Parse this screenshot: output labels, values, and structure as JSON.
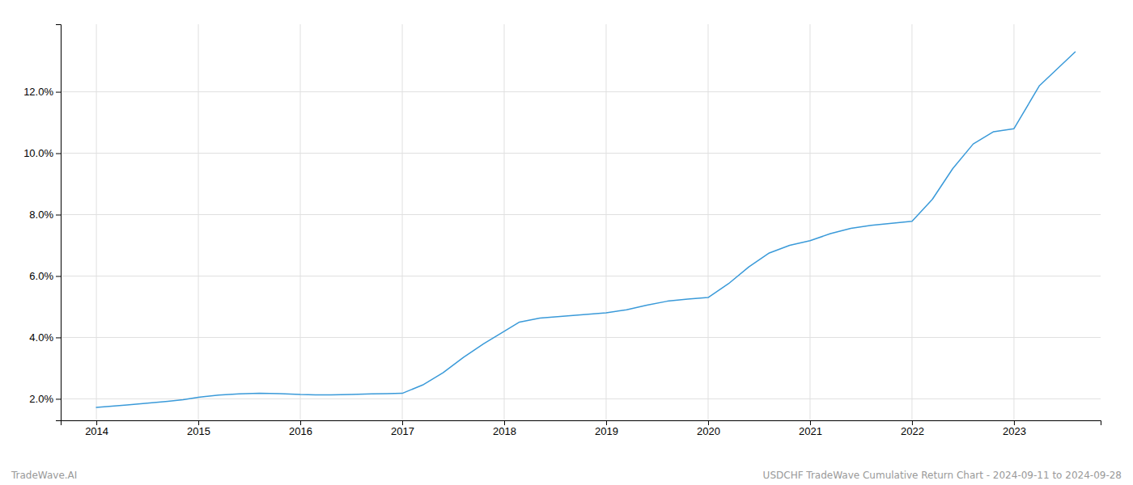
{
  "chart_data": {
    "type": "line",
    "x": [
      2014.0,
      2014.15,
      2014.3,
      2014.5,
      2014.7,
      2014.85,
      2015.0,
      2015.2,
      2015.4,
      2015.6,
      2015.8,
      2016.0,
      2016.15,
      2016.3,
      2016.5,
      2016.7,
      2016.85,
      2017.0,
      2017.2,
      2017.4,
      2017.6,
      2017.8,
      2018.0,
      2018.15,
      2018.35,
      2018.5,
      2018.7,
      2018.85,
      2019.0,
      2019.2,
      2019.4,
      2019.6,
      2019.8,
      2020.0,
      2020.2,
      2020.4,
      2020.6,
      2020.8,
      2021.0,
      2021.2,
      2021.4,
      2021.6,
      2021.8,
      2022.0,
      2022.2,
      2022.4,
      2022.6,
      2022.8,
      2023.0,
      2023.25,
      2023.6
    ],
    "values": [
      1.72,
      1.76,
      1.8,
      1.86,
      1.92,
      1.97,
      2.05,
      2.12,
      2.16,
      2.18,
      2.17,
      2.14,
      2.13,
      2.13,
      2.14,
      2.16,
      2.17,
      2.18,
      2.45,
      2.85,
      3.35,
      3.8,
      4.2,
      4.5,
      4.63,
      4.67,
      4.72,
      4.76,
      4.8,
      4.9,
      5.05,
      5.18,
      5.25,
      5.3,
      5.75,
      6.3,
      6.75,
      7.0,
      7.15,
      7.38,
      7.55,
      7.65,
      7.72,
      7.78,
      8.5,
      9.5,
      10.3,
      10.7,
      10.8,
      12.2,
      13.3
    ],
    "color": "#3a9ad9",
    "xlim": [
      2013.65,
      2023.85
    ],
    "xticks": [
      2014,
      2015,
      2016,
      2017,
      2018,
      2019,
      2020,
      2021,
      2022,
      2023
    ],
    "ylim": [
      1.3,
      14.2
    ],
    "yticks": [
      {
        "value": 2.0,
        "label": "2.0%"
      },
      {
        "value": 4.0,
        "label": "4.0%"
      },
      {
        "value": 6.0,
        "label": "6.0%"
      },
      {
        "value": 8.0,
        "label": "8.0%"
      },
      {
        "value": 10.0,
        "label": "10.0%"
      },
      {
        "value": 12.0,
        "label": "12.0%"
      }
    ],
    "grid": true,
    "annotations": [
      "TradeWave.AI",
      "USDCHF TradeWave Cumulative Return Chart - 2024-09-11 to 2024-09-28"
    ]
  }
}
